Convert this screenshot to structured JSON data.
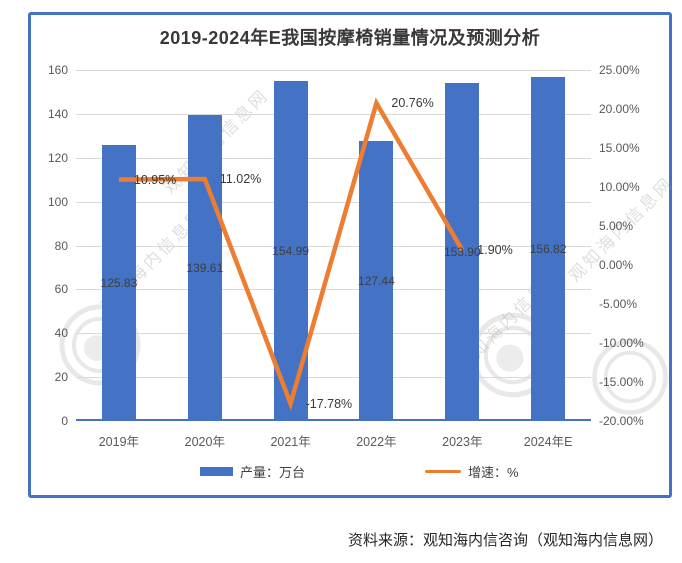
{
  "chart": {
    "title": "2019-2024年E我国按摩椅销量情况及预测分析",
    "legend": {
      "bar": "产量：万台",
      "line": "增速：%"
    },
    "colors": {
      "bar": "#4472C4",
      "line": "#ED7D31",
      "border": "#4472C4",
      "grid": "#D9D9D9",
      "axis_line": "#4472C4",
      "axis_text": "#595959",
      "label_text": "#3f3f3f"
    }
  },
  "chart_data": {
    "type": "combo",
    "title": "2019-2024年E我国按摩椅销量情况及预测分析",
    "categories": [
      "2019年",
      "2020年",
      "2021年",
      "2022年",
      "2023年",
      "2024年E"
    ],
    "series": [
      {
        "name": "产量：万台",
        "type": "bar",
        "axis": "left",
        "values": [
          125.83,
          139.61,
          154.99,
          127.44,
          153.9,
          156.82
        ],
        "labels": [
          "125.83",
          "139.61",
          "154.99",
          "127.44",
          "153.90",
          "156.82"
        ]
      },
      {
        "name": "增速：%",
        "type": "line",
        "axis": "right",
        "values": [
          10.95,
          11.02,
          -17.78,
          20.76,
          1.9,
          null
        ],
        "labels": [
          "10.95%",
          "11.02%",
          "-17.78%",
          "20.76%",
          "1.90%",
          null
        ]
      }
    ],
    "left_axis": {
      "min": 0,
      "max": 160,
      "step": 20,
      "tick_labels": [
        "160",
        "140",
        "120",
        "100",
        "80",
        "60",
        "40",
        "20",
        "0"
      ]
    },
    "right_axis": {
      "min": -20,
      "max": 25,
      "step": 5,
      "tick_labels": [
        "25.00%",
        "20.00%",
        "15.00%",
        "10.00%",
        "5.00%",
        "0.00%",
        "-5.00%",
        "-10.00%",
        "-15.00%",
        "-20.00%"
      ]
    },
    "grid": true,
    "legend_position": "bottom"
  },
  "watermark": {
    "text": "观知海内信息网"
  },
  "source": "资料来源：观知海内信咨询（观知海内信息网）"
}
